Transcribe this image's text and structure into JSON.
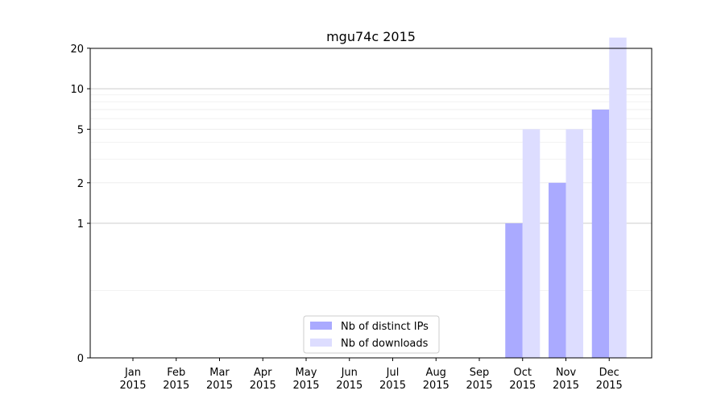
{
  "chart_data": {
    "type": "bar",
    "title": "mgu74c 2015",
    "xlabel": "",
    "ylabel": "",
    "categories": [
      "Jan\n2015",
      "Feb\n2015",
      "Mar\n2015",
      "Apr\n2015",
      "May\n2015",
      "Jun\n2015",
      "Jul\n2015",
      "Aug\n2015",
      "Sep\n2015",
      "Oct\n2015",
      "Nov\n2015",
      "Dec\n2015"
    ],
    "y_scale": "symlog",
    "yticks": [
      0,
      1,
      2,
      5,
      10,
      20,
      50,
      100
    ],
    "grid": true,
    "legend_position": "bottom-center",
    "series": [
      {
        "name": "Nb of distinct IPs",
        "color": "#aaaaff",
        "values": [
          0,
          0,
          0,
          0,
          0,
          0,
          0,
          0,
          0,
          1,
          2,
          7
        ]
      },
      {
        "name": "Nb of downloads",
        "color": "#ddddff",
        "values": [
          0,
          0,
          0,
          0,
          0,
          0,
          0,
          0,
          0,
          5,
          5,
          24
        ]
      }
    ]
  }
}
